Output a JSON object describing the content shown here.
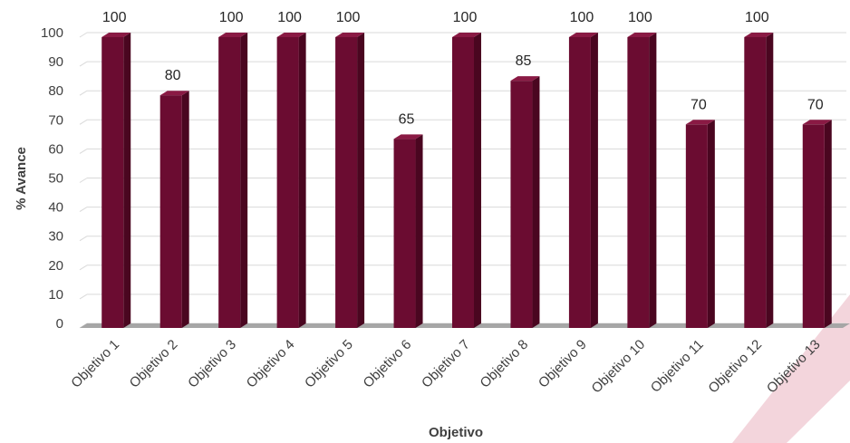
{
  "colors": {
    "bar_front": "#6b0c31",
    "bar_side": "#4a0620",
    "bar_top": "#8a1a44",
    "grid": "#d9d9d9",
    "floor": "#a6a6a6",
    "corner_accent": "#f3d5dc"
  },
  "chart_data": {
    "type": "bar",
    "xlabel": "Objetivo",
    "ylabel": "% Avance",
    "ylim": [
      0,
      100
    ],
    "yticks": [
      0,
      10,
      20,
      30,
      40,
      50,
      60,
      70,
      80,
      90,
      100
    ],
    "categories": [
      "Objetivo 1",
      "Objetivo 2",
      "Objetivo 3",
      "Objetivo 4",
      "Objetivo 5",
      "Objetivo 6",
      "Objetivo 7",
      "Objetivo 8",
      "Objetivo 9",
      "Objetivo 10",
      "Objetivo 11",
      "Objetivo 12",
      "Objetivo 13"
    ],
    "values": [
      100,
      80,
      100,
      100,
      100,
      65,
      100,
      85,
      100,
      100,
      70,
      100,
      70
    ],
    "grid": true,
    "legend": "none",
    "style": "3d-column"
  }
}
